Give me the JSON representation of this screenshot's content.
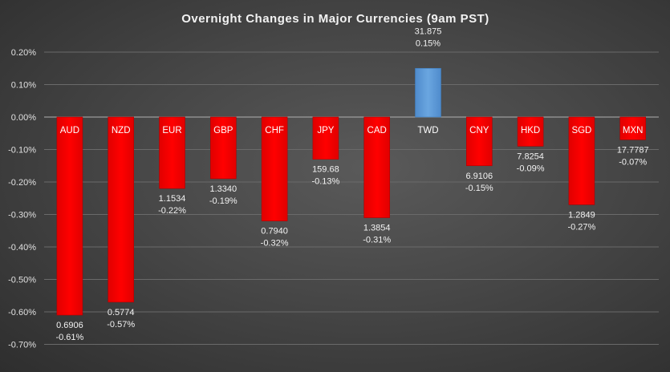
{
  "chart_data": {
    "type": "bar",
    "title": "Overnight Changes in Major Currencies (9am PST)",
    "xlabel": "",
    "ylabel": "",
    "ylim": [
      -0.7,
      0.2
    ],
    "yticks": [
      "0.20%",
      "0.10%",
      "0.00%",
      "-0.10%",
      "-0.20%",
      "-0.30%",
      "-0.40%",
      "-0.50%",
      "-0.60%",
      "-0.70%"
    ],
    "ytick_values": [
      0.2,
      0.1,
      0.0,
      -0.1,
      -0.2,
      -0.3,
      -0.4,
      -0.5,
      -0.6,
      -0.7
    ],
    "grid": true,
    "categories": [
      "AUD",
      "NZD",
      "EUR",
      "GBP",
      "CHF",
      "JPY",
      "CAD",
      "TWD",
      "CNY",
      "HKD",
      "SGD",
      "MXN"
    ],
    "values": [
      -0.61,
      -0.57,
      -0.22,
      -0.19,
      -0.32,
      -0.13,
      -0.31,
      0.15,
      -0.15,
      -0.09,
      -0.27,
      -0.07
    ],
    "value_labels": [
      "-0.61%",
      "-0.57%",
      "-0.22%",
      "-0.19%",
      "-0.32%",
      "-0.13%",
      "-0.31%",
      "0.15%",
      "-0.15%",
      "-0.09%",
      "-0.27%",
      "-0.07%"
    ],
    "rates": [
      "0.6906",
      "0.5774",
      "1.1534",
      "1.3340",
      "0.7940",
      "159.68",
      "1.3854",
      "31.875",
      "6.9106",
      "7.8254",
      "1.2849",
      "17.7787"
    ],
    "colors": {
      "negative": "#ff0000",
      "positive": "#5b9bd5",
      "grid": "#6a6a6a",
      "zero": "#b0b0b0"
    }
  }
}
